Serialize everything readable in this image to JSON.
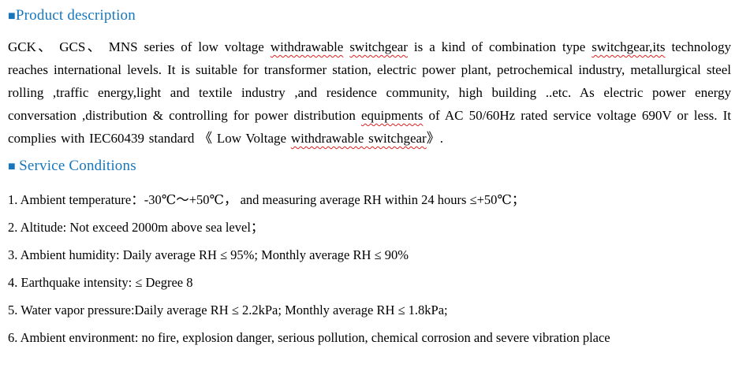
{
  "colors": {
    "heading_blue": "#1777bd",
    "body_text": "#000000",
    "spellcheck_red": "#e02020",
    "background": "#ffffff"
  },
  "headings": {
    "product": {
      "bullet": "■",
      "label": "Product description"
    },
    "service": {
      "bullet": "■ ",
      "label": "Service Conditions"
    }
  },
  "product_paragraph": {
    "segments": [
      "GCK、 GCS、 MNS series of low voltage ",
      "withdrawable",
      " ",
      "switchgear",
      " is a kind of combination type ",
      "switchgear,its",
      " technology reaches international levels. It is suitable for transformer station, electric power plant, petrochemical industry, metallurgical steel rolling ,traffic energy,light and textile industry ,and residence community, high building ..etc. As electric power energy conversation ,distribution & controlling for power distribution ",
      "equipments",
      " of AC 50/60Hz rated service voltage 690V or less. It complies with IEC60439 standard 《 Low Voltage ",
      "withdrawable switchgear",
      "》."
    ]
  },
  "service_conditions": {
    "items": [
      "1. Ambient temperature：-30℃～+50℃， and measuring average RH within 24 hours ≤+50℃；",
      "2. Altitude: Not exceed 2000m above sea level；",
      "3. Ambient humidity: Daily average RH ≤ 95%; Monthly average RH ≤ 90%",
      "4. Earthquake intensity: ≤ Degree 8",
      "5. Water vapor pressure:Daily average RH ≤ 2.2kPa; Monthly average RH ≤ 1.8kPa;",
      "6. Ambient environment: no fire, explosion danger, serious pollution, chemical corrosion and severe vibration place"
    ]
  }
}
